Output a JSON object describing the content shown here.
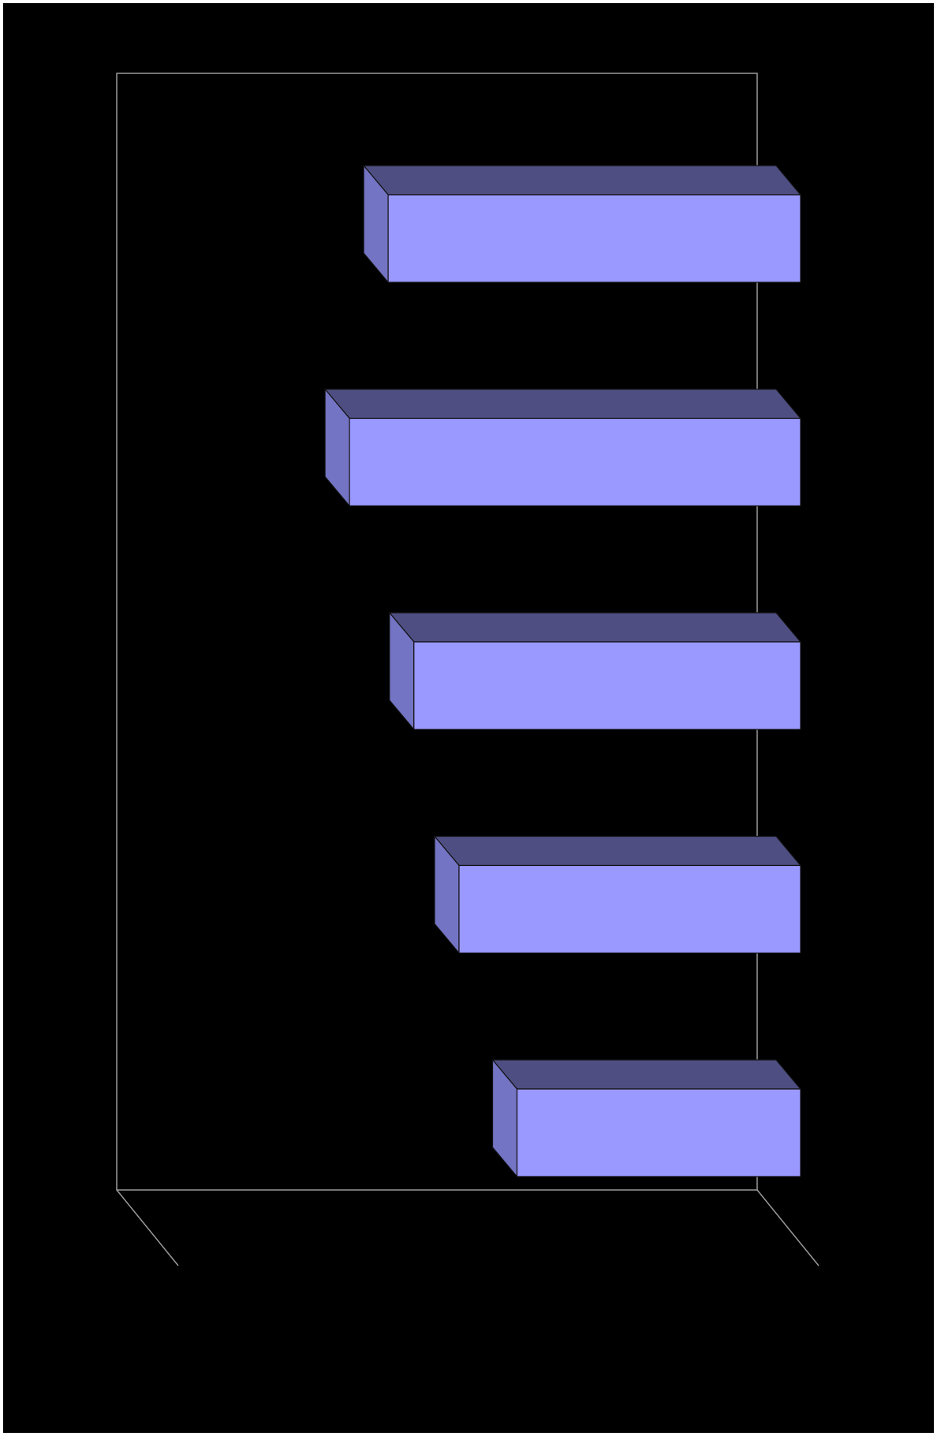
{
  "chart_data": {
    "type": "bar",
    "orientation": "horizontal",
    "three_d": true,
    "categories": [
      "",
      "",
      "",
      "",
      ""
    ],
    "values": [
      64,
      70,
      60,
      53,
      44
    ],
    "xlim": [
      100,
      0
    ],
    "title": "",
    "xlabel": "",
    "ylabel": "",
    "grid": false,
    "legend": "none",
    "colors": {
      "background": "#000000",
      "bar_front": "#9a99ff",
      "bar_top": "#4e4e83",
      "bar_side": "#7474c4",
      "wall": "#9a9a9a",
      "edge": "#111111"
    }
  }
}
